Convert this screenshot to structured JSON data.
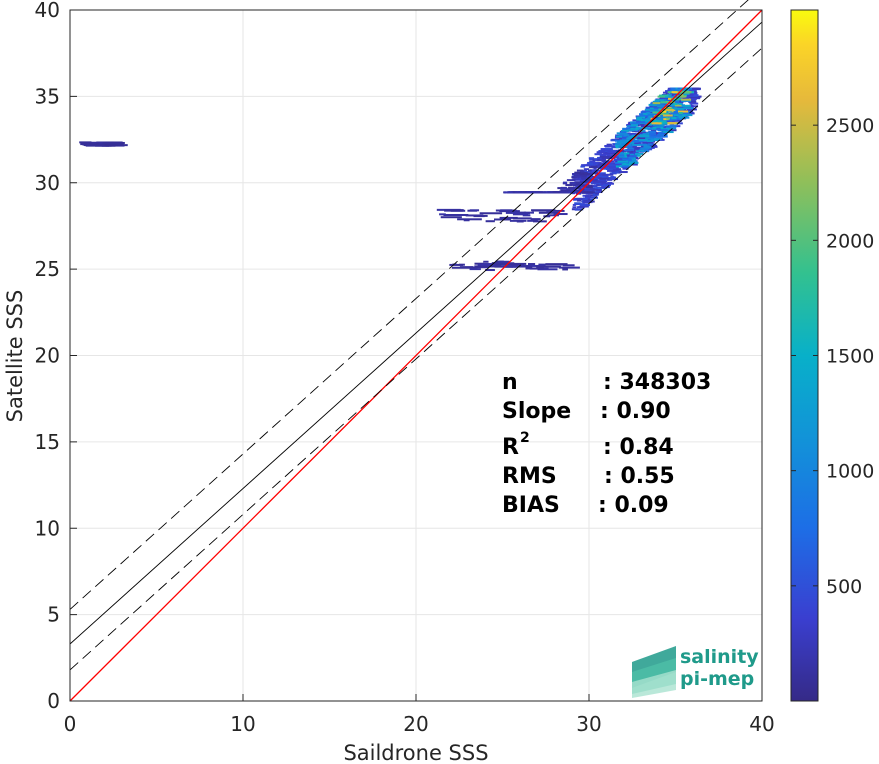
{
  "chart_data": {
    "type": "heatmap",
    "xlabel": "Saildrone SSS",
    "ylabel": "Satellite SSS",
    "xlim": [
      0,
      40
    ],
    "ylim": [
      0,
      40
    ],
    "xticks": [
      "0",
      "10",
      "20",
      "30",
      "40"
    ],
    "yticks": [
      "0",
      "5",
      "10",
      "15",
      "20",
      "25",
      "30",
      "35",
      "40"
    ],
    "grid": true,
    "colorbar": {
      "range": [
        0,
        3000
      ],
      "ticks": [
        "500",
        "1000",
        "1500",
        "2000",
        "2500"
      ],
      "colormap": "parula"
    },
    "reference_lines": [
      {
        "name": "1:1",
        "slope": 1.0,
        "intercept": 0.0,
        "color": "#ff0000",
        "style": "solid"
      },
      {
        "name": "fit",
        "slope": 0.9,
        "intercept": 3.3,
        "color": "#000000",
        "style": "solid"
      },
      {
        "name": "fit_upper",
        "slope": 0.9,
        "intercept": 5.3,
        "color": "#000000",
        "style": "dashed"
      },
      {
        "name": "fit_lower",
        "slope": 0.9,
        "intercept": 1.8,
        "color": "#000000",
        "style": "dashed"
      }
    ],
    "density_clusters": [
      {
        "x": [
          29,
          36
        ],
        "y": [
          28.5,
          35.5
        ],
        "level": 0.12
      },
      {
        "x": [
          31.5,
          35.5
        ],
        "y": [
          31,
          35.5
        ],
        "level": 0.35
      },
      {
        "x": [
          33.5,
          35.5
        ],
        "y": [
          33.5,
          35.3
        ],
        "level": 0.7
      },
      {
        "x": [
          21,
          28
        ],
        "y": [
          27.8,
          28.5
        ],
        "level": 0.04
      },
      {
        "x": [
          25,
          30
        ],
        "y": [
          29.5,
          31.5
        ],
        "level": 0.05
      },
      {
        "x": [
          21.5,
          28.5
        ],
        "y": [
          25,
          25.5
        ],
        "level": 0.04
      },
      {
        "x": [
          0.5,
          2.3
        ],
        "y": [
          32.2,
          32.4
        ],
        "level": 0.03
      }
    ],
    "stats": [
      {
        "label": "n",
        "value": ": 348303"
      },
      {
        "label": "Slope",
        "value": ": 0.90"
      },
      {
        "label": "R",
        "sup": "2",
        "value": ": 0.84"
      },
      {
        "label": "RMS",
        "value": ": 0.55"
      },
      {
        "label": "BIAS",
        "value": ": 0.09"
      }
    ]
  },
  "logo": {
    "line1": "salinity",
    "line2": "pi-mep"
  },
  "colors": {
    "one_to_one": "#ff0000",
    "fit": "#000000",
    "grid": "#e6e6e6",
    "axis": "#262626"
  }
}
